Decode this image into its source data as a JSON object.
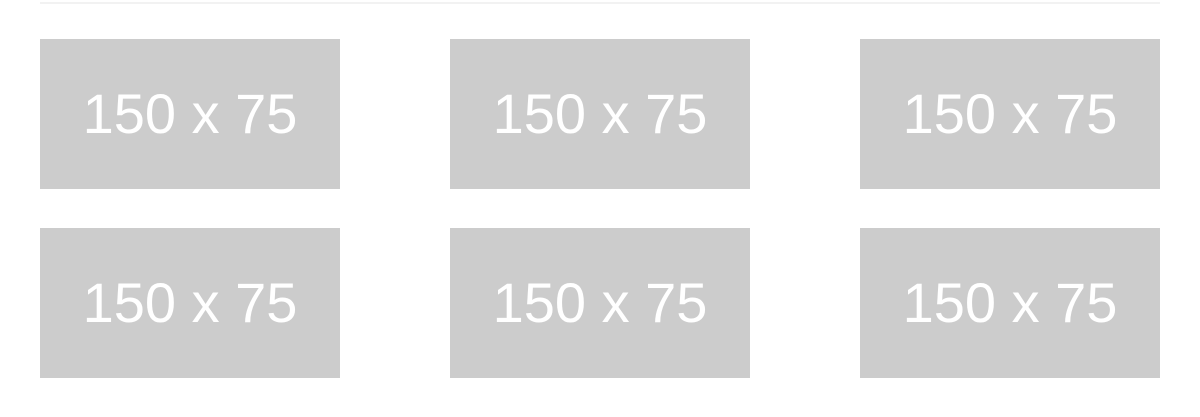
{
  "placeholders": [
    {
      "label": "150 x 75"
    },
    {
      "label": "150 x 75"
    },
    {
      "label": "150 x 75"
    },
    {
      "label": "150 x 75"
    },
    {
      "label": "150 x 75"
    },
    {
      "label": "150 x 75"
    }
  ],
  "colors": {
    "placeholder_bg": "#cccccc",
    "placeholder_text": "#ffffff",
    "page_bg": "#ffffff",
    "divider": "#f2f2f2"
  }
}
